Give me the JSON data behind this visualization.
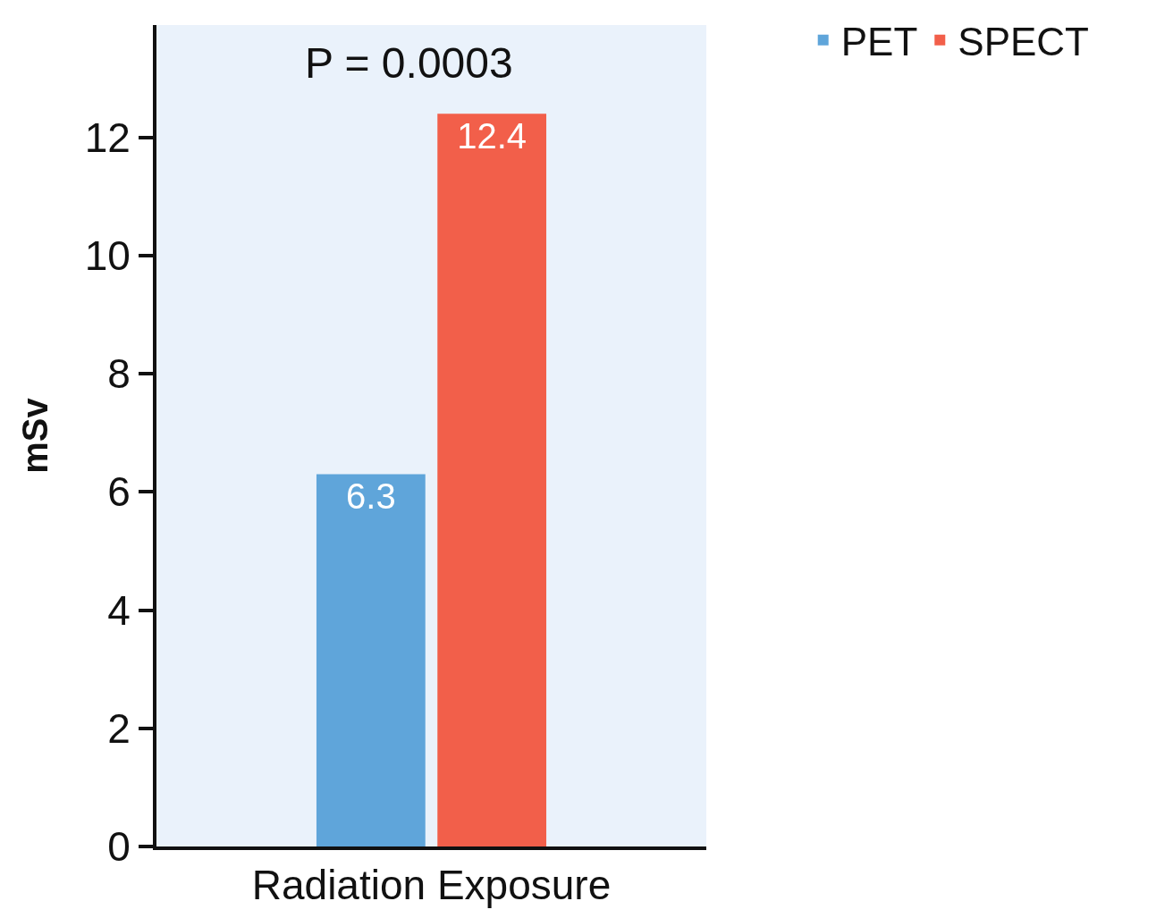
{
  "chart_data": {
    "type": "bar",
    "categories": [
      "Radiation Exposure"
    ],
    "series": [
      {
        "name": "PET",
        "color": "#5fa5da",
        "values": [
          6.3
        ]
      },
      {
        "name": "SPECT",
        "color": "#f25f4a",
        "values": [
          12.4
        ]
      }
    ],
    "ylabel": "mSv",
    "ylim": [
      0,
      13.9
    ],
    "yticks": [
      0,
      2,
      4,
      6,
      8,
      10,
      12
    ],
    "annotations": [
      "P = 0.0003"
    ],
    "data_labels": true,
    "grid": false,
    "legend": "top right"
  }
}
